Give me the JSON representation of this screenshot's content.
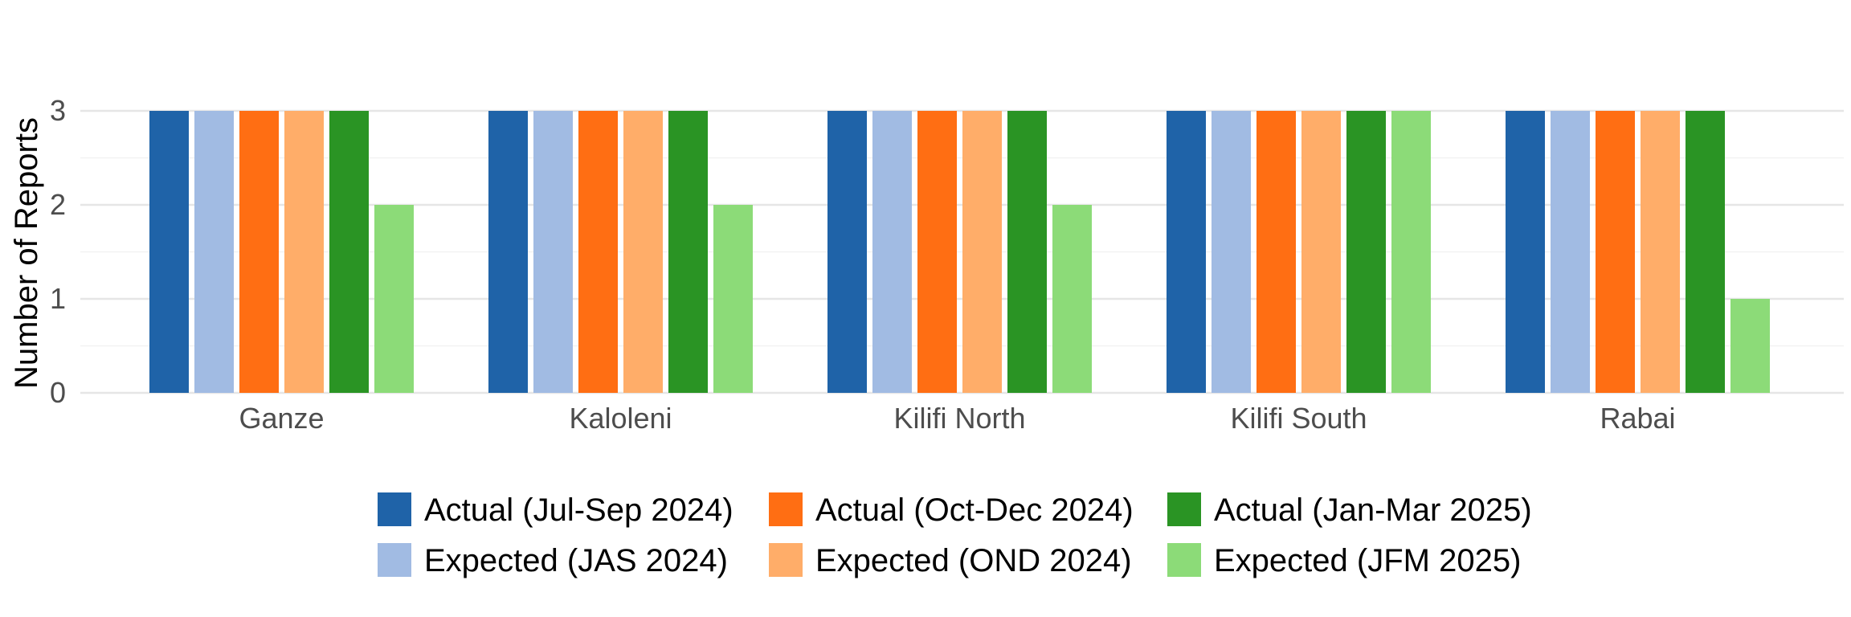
{
  "chart_data": {
    "type": "bar",
    "title": "",
    "xlabel": "",
    "ylabel": "Number of Reports",
    "ylim": [
      0,
      3
    ],
    "yticks": [
      0,
      1,
      2,
      3
    ],
    "grid": true,
    "legend_position": "bottom",
    "categories": [
      "Ganze",
      "Kaloleni",
      "Kilifi North",
      "Kilifi South",
      "Rabai"
    ],
    "series": [
      {
        "name": "Actual (Jul-Sep 2024)",
        "color": "#1f63a8",
        "values": [
          3,
          3,
          3,
          3,
          3
        ]
      },
      {
        "name": "Expected (JAS 2024)",
        "color": "#a1bbe3",
        "values": [
          3,
          3,
          3,
          3,
          3
        ]
      },
      {
        "name": "Actual (Oct-Dec 2024)",
        "color": "#ff6e13",
        "values": [
          3,
          3,
          3,
          3,
          3
        ]
      },
      {
        "name": "Expected (OND 2024)",
        "color": "#ffad69",
        "values": [
          3,
          3,
          3,
          3,
          3
        ]
      },
      {
        "name": "Actual (Jan-Mar 2025)",
        "color": "#2a9424",
        "values": [
          3,
          3,
          3,
          3,
          3
        ]
      },
      {
        "name": "Expected (JFM 2025)",
        "color": "#8cdb78",
        "values": [
          2,
          2,
          2,
          3,
          1
        ]
      }
    ]
  }
}
